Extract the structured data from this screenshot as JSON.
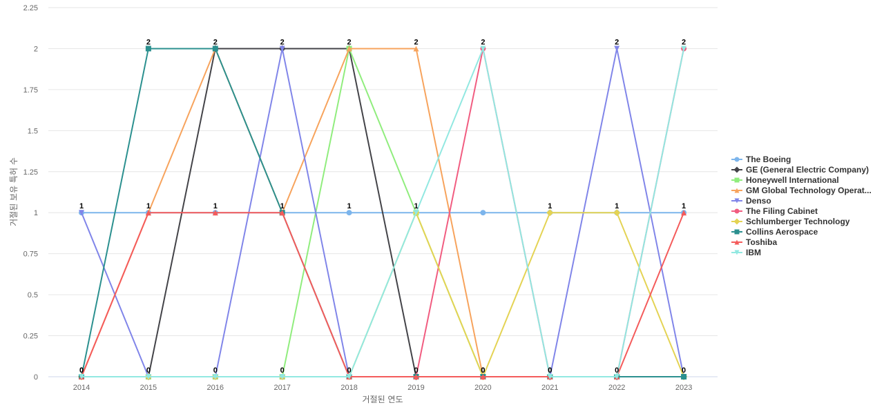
{
  "chart_data": {
    "type": "line",
    "xlabel": "거절된 연도",
    "ylabel": "거절된 보유 특허 수",
    "x": [
      "2014",
      "2015",
      "2016",
      "2017",
      "2018",
      "2019",
      "2020",
      "2021",
      "2022",
      "2023"
    ],
    "ylim": [
      0,
      2.25
    ],
    "yticks": [
      "0",
      "0.25",
      "0.5",
      "0.75",
      "1",
      "1.25",
      "1.5",
      "1.75",
      "2",
      "2.25"
    ],
    "grid": true,
    "legend_position": "right",
    "data_labels": [
      "1",
      "2",
      "2",
      "2",
      "2",
      "2",
      "2",
      "1",
      "2",
      "2",
      "0",
      "1",
      "1",
      "1",
      "1",
      "1",
      "0",
      "0",
      "1",
      "1",
      "0",
      "0",
      "0",
      "0",
      "0",
      "0",
      "0",
      "0",
      "0",
      "0"
    ],
    "series": [
      {
        "name": "The Boeing",
        "values": [
          1,
          1,
          1,
          1,
          1,
          1,
          1,
          1,
          1,
          1
        ],
        "color": "#7cb5ec",
        "marker": "circle"
      },
      {
        "name": "GE (General Electric Company)",
        "values": [
          0,
          0,
          2,
          2,
          2,
          0,
          0,
          0,
          0,
          0
        ],
        "color": "#434348",
        "marker": "diamond"
      },
      {
        "name": "Honeywell International",
        "values": [
          0,
          0,
          0,
          0,
          2,
          1,
          0,
          0,
          0,
          0
        ],
        "color": "#90ed7d",
        "marker": "square"
      },
      {
        "name": "GM Global Technology Operat...",
        "values": [
          0,
          1,
          2,
          1,
          2,
          2,
          0,
          0,
          0,
          0
        ],
        "color": "#f7a35c",
        "marker": "triangle"
      },
      {
        "name": "Denso",
        "values": [
          1,
          0,
          0,
          2,
          0,
          0,
          0,
          0,
          2,
          0
        ],
        "color": "#8085e9",
        "marker": "triangle-down"
      },
      {
        "name": "The Filing Cabinet",
        "values": [
          0,
          0,
          0,
          0,
          0,
          0,
          2,
          0,
          0,
          2
        ],
        "color": "#f15c80",
        "marker": "circle"
      },
      {
        "name": "Schlumberger Technology",
        "values": [
          0,
          0,
          0,
          0,
          0,
          1,
          0,
          1,
          1,
          0
        ],
        "color": "#e4d354",
        "marker": "diamond"
      },
      {
        "name": "Collins Aerospace",
        "values": [
          0,
          2,
          2,
          1,
          0,
          0,
          0,
          0,
          0,
          0
        ],
        "color": "#2b908f",
        "marker": "square"
      },
      {
        "name": "Toshiba",
        "values": [
          0,
          1,
          1,
          1,
          0,
          0,
          0,
          0,
          0,
          1
        ],
        "color": "#f45b5b",
        "marker": "triangle"
      },
      {
        "name": "IBM",
        "values": [
          0,
          0,
          0,
          0,
          0,
          1,
          2,
          0,
          0,
          2
        ],
        "color": "#91e8e1",
        "marker": "triangle-down"
      }
    ]
  }
}
